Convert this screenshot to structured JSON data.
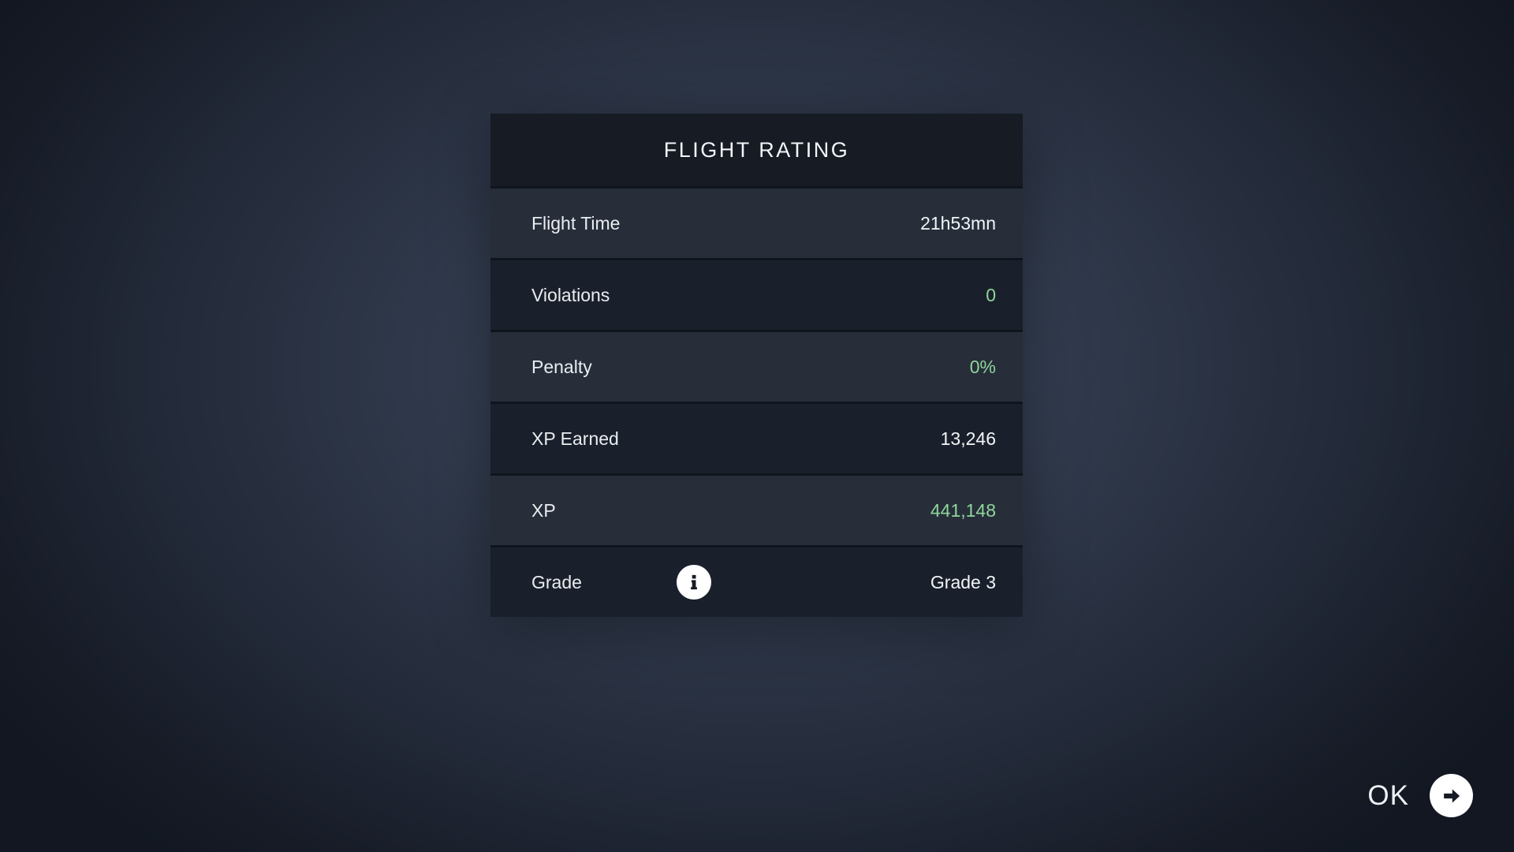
{
  "panel": {
    "title": "FLIGHT RATING",
    "rows": [
      {
        "slug": "flight-time",
        "label": "Flight Time",
        "value": "21h53mn",
        "value_color": "white",
        "tone": "light",
        "info_icon": false
      },
      {
        "slug": "violations",
        "label": "Violations",
        "value": "0",
        "value_color": "green",
        "tone": "dark",
        "info_icon": false
      },
      {
        "slug": "penalty",
        "label": "Penalty",
        "value": "0%",
        "value_color": "green",
        "tone": "light",
        "info_icon": false
      },
      {
        "slug": "xp-earned",
        "label": "XP Earned",
        "value": "13,246",
        "value_color": "white",
        "tone": "dark",
        "info_icon": false
      },
      {
        "slug": "xp",
        "label": "XP",
        "value": "441,148",
        "value_color": "green",
        "tone": "light",
        "info_icon": false
      },
      {
        "slug": "grade",
        "label": "Grade",
        "value": "Grade 3",
        "value_color": "white",
        "tone": "dark",
        "info_icon": true
      }
    ]
  },
  "footer": {
    "ok_label": "OK"
  },
  "icons": {
    "grade_info": "info-icon",
    "ok_arrow": "arrow-right-circle-icon"
  },
  "colors": {
    "accent_green": "#8ED69A",
    "value_white": "#F2F5F7",
    "header_bg": "#161B24",
    "row_dark": "#1A202B",
    "row_light": "#272E3A",
    "icon_ink": "#161B25",
    "icon_bg": "#FFFFFF"
  }
}
